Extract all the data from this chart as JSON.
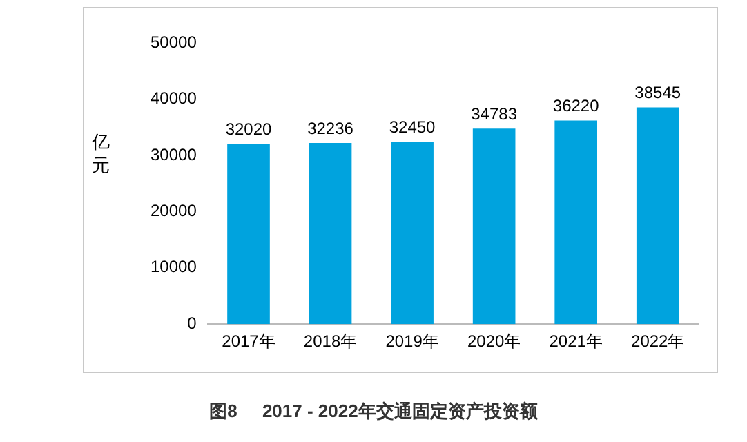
{
  "chart_data": {
    "type": "bar",
    "title": "图8     2017 - 2022年交通固定资产投资额",
    "ylabel": "亿元",
    "categories": [
      "2017年",
      "2018年",
      "2019年",
      "2020年",
      "2021年",
      "2022年"
    ],
    "values": [
      32020,
      32236,
      32450,
      34783,
      36220,
      38545
    ],
    "color": "#00a3de",
    "ylim": [
      0,
      50000
    ],
    "yticks": [
      0,
      10000,
      20000,
      30000,
      40000,
      50000
    ],
    "grid": false,
    "legend": false,
    "data_labels": true
  }
}
